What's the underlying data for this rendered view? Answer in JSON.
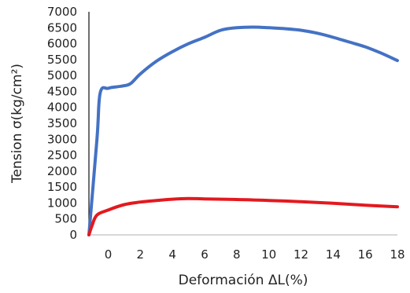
{
  "chart_data": {
    "type": "line",
    "title": "",
    "xlabel": "Deformación ΔL(%)",
    "ylabel": "Tension σ(kg/cm²)",
    "xlim": [
      -1.2,
      18
    ],
    "ylim": [
      0,
      7000
    ],
    "x_ticks": [
      "0",
      "2",
      "4",
      "6",
      "8",
      "10",
      "12",
      "14",
      "16",
      "18"
    ],
    "x_tick_values": [
      0,
      2,
      4,
      6,
      8,
      10,
      12,
      14,
      16,
      18
    ],
    "y_ticks": [
      "0",
      "500",
      "1000",
      "1500",
      "2000",
      "2500",
      "3000",
      "3500",
      "4000",
      "4500",
      "5000",
      "5500",
      "6000",
      "6500",
      "7000"
    ],
    "y_tick_values": [
      0,
      500,
      1000,
      1500,
      2000,
      2500,
      3000,
      3500,
      4000,
      4500,
      5000,
      5500,
      6000,
      6500,
      7000
    ],
    "grid": false,
    "legend": "none",
    "series": [
      {
        "color": "#4472c4",
        "x": [
          -1.2,
          -0.7,
          -0.5,
          0.0,
          0.6,
          1.0,
          1.4,
          2.0,
          3.0,
          4.0,
          5.0,
          6.0,
          7.0,
          8.0,
          9.0,
          10.0,
          11.0,
          12.0,
          13.0,
          14.0,
          15.0,
          16.0,
          17.0,
          18.0
        ],
        "y": [
          0,
          3000,
          4450,
          4600,
          4650,
          4680,
          4750,
          5050,
          5450,
          5750,
          6000,
          6200,
          6420,
          6500,
          6520,
          6500,
          6470,
          6420,
          6330,
          6200,
          6050,
          5900,
          5700,
          5470
        ]
      },
      {
        "color": "#e3191f",
        "x": [
          -1.2,
          -1.0,
          -0.7,
          0.0,
          1.0,
          2.0,
          3.0,
          4.0,
          5.0,
          6.0,
          8.0,
          10.0,
          12.0,
          14.0,
          16.0,
          18.0
        ],
        "y": [
          0,
          300,
          620,
          780,
          950,
          1030,
          1080,
          1120,
          1140,
          1130,
          1110,
          1080,
          1040,
          990,
          930,
          880
        ]
      }
    ]
  }
}
